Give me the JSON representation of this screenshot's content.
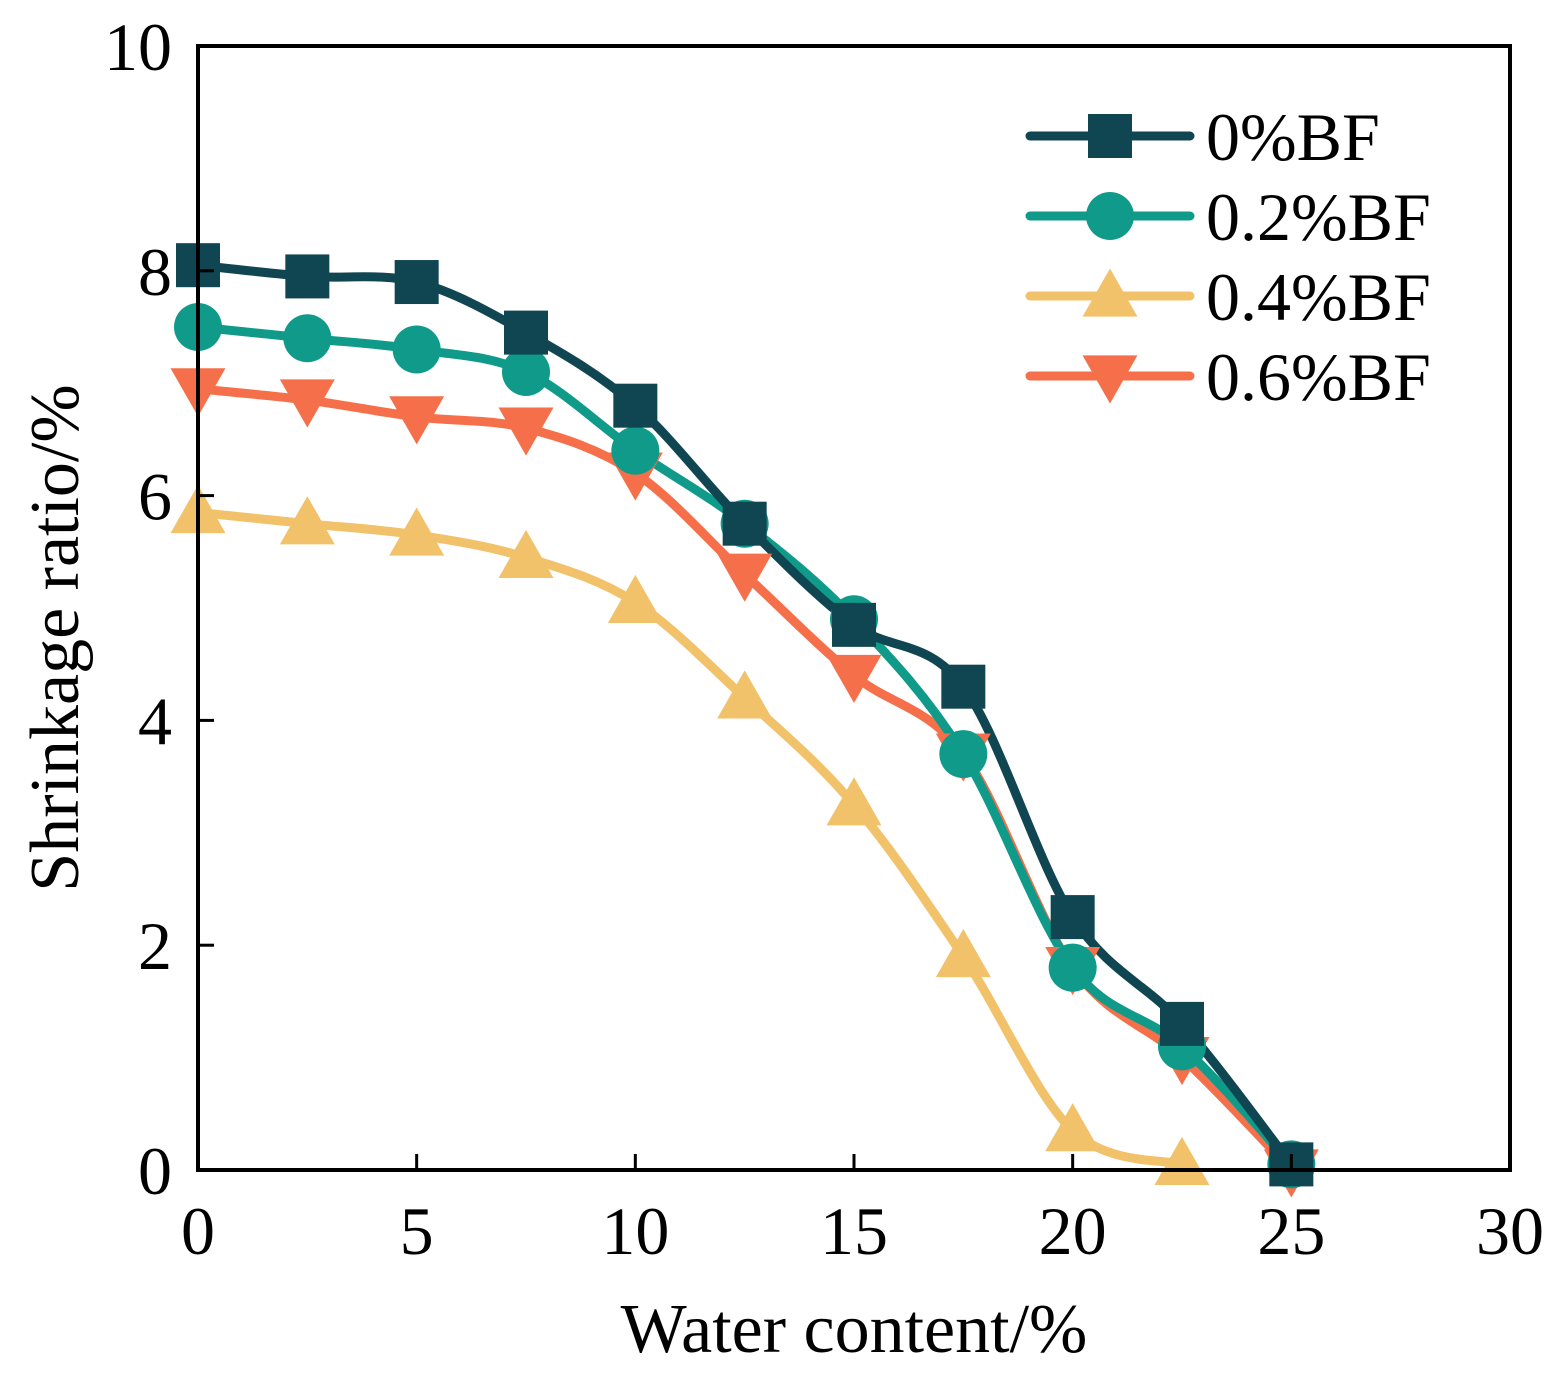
{
  "chart_data": {
    "type": "line",
    "title": "",
    "xlabel": "Water content/%",
    "ylabel": "Shrinkage ratio/%",
    "xlim": [
      0,
      30
    ],
    "ylim": [
      0,
      10
    ],
    "xticks": [
      "0",
      "5",
      "10",
      "15",
      "20",
      "25",
      "30"
    ],
    "yticks": [
      "0",
      "2",
      "4",
      "6",
      "8",
      "10"
    ],
    "legend_position": "top-right",
    "grid": false,
    "series": [
      {
        "name": "0%BF",
        "color": "#0f4652",
        "marker": "square",
        "x": [
          0,
          2.5,
          5,
          7.5,
          10,
          12.5,
          15,
          17.5,
          20,
          22.5,
          25
        ],
        "y": [
          8.05,
          7.95,
          7.9,
          7.45,
          6.8,
          5.75,
          4.85,
          4.3,
          2.25,
          1.3,
          0.05
        ]
      },
      {
        "name": "0.2%BF",
        "color": "#0f9a8a",
        "marker": "circle",
        "x": [
          0,
          2.5,
          5,
          7.5,
          10,
          12.5,
          15,
          17.5,
          20,
          22.5,
          25
        ],
        "y": [
          7.5,
          7.4,
          7.3,
          7.1,
          6.4,
          5.75,
          4.9,
          3.7,
          1.8,
          1.1,
          0.05
        ]
      },
      {
        "name": "0.4%BF",
        "color": "#f2c26a",
        "marker": "triangle-up",
        "x": [
          0,
          2.5,
          5,
          7.5,
          10,
          12.5,
          15,
          17.5,
          20,
          22.5
        ],
        "y": [
          5.85,
          5.75,
          5.65,
          5.45,
          5.05,
          4.2,
          3.25,
          1.9,
          0.35,
          0.05
        ]
      },
      {
        "name": "0.6%BF",
        "color": "#f5704a",
        "marker": "triangle-down",
        "x": [
          0,
          2.5,
          5,
          7.5,
          10,
          12.5,
          15,
          17.5,
          20,
          22.5,
          25
        ],
        "y": [
          6.95,
          6.85,
          6.7,
          6.6,
          6.2,
          5.3,
          4.4,
          3.7,
          1.8,
          1.0,
          0.0
        ]
      }
    ]
  }
}
